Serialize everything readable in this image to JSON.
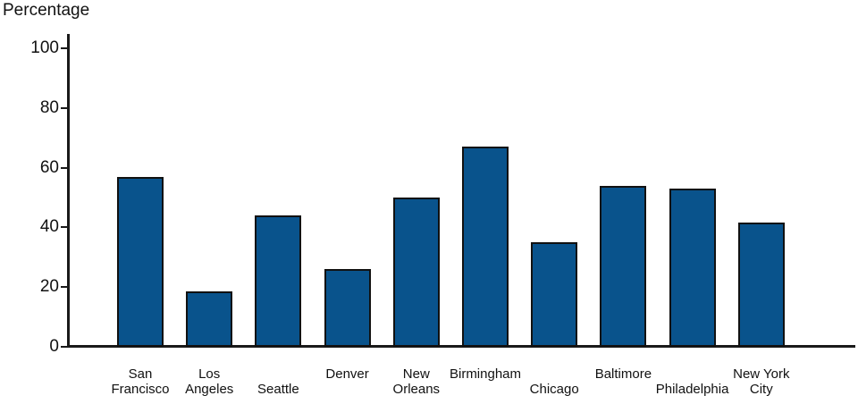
{
  "chart_data": {
    "type": "bar",
    "title": "",
    "xlabel": "",
    "ylabel": "Percentage",
    "ylim": [
      0,
      100
    ],
    "ytick_interval": 20,
    "yticks": [
      0,
      20,
      40,
      60,
      80,
      100
    ],
    "grid": false,
    "legend": false,
    "bar_color": "#09538C",
    "bar_border_color": "#111111",
    "axis_color": "#1a1a1a",
    "categories": [
      {
        "name": "San Francisco",
        "label_lines": [
          "San",
          "Francisco"
        ],
        "label_row": "both"
      },
      {
        "name": "Los Angeles",
        "label_lines": [
          "Los",
          "Angeles"
        ],
        "label_row": "both"
      },
      {
        "name": "Seattle",
        "label_lines": [
          "Seattle"
        ],
        "label_row": "bottom"
      },
      {
        "name": "Denver",
        "label_lines": [
          "Denver"
        ],
        "label_row": "top"
      },
      {
        "name": "New Orleans",
        "label_lines": [
          "New",
          "Orleans"
        ],
        "label_row": "both"
      },
      {
        "name": "Birmingham",
        "label_lines": [
          "Birmingham"
        ],
        "label_row": "top"
      },
      {
        "name": "Chicago",
        "label_lines": [
          "Chicago"
        ],
        "label_row": "bottom"
      },
      {
        "name": "Baltimore",
        "label_lines": [
          "Baltimore"
        ],
        "label_row": "top"
      },
      {
        "name": "Philadelphia",
        "label_lines": [
          "Philadelphia"
        ],
        "label_row": "bottom"
      },
      {
        "name": "New York City",
        "label_lines": [
          "New York",
          "City"
        ],
        "label_row": "both"
      }
    ],
    "values": [
      57,
      18.5,
      44,
      26,
      50,
      67,
      35,
      54,
      53,
      41.5
    ]
  }
}
